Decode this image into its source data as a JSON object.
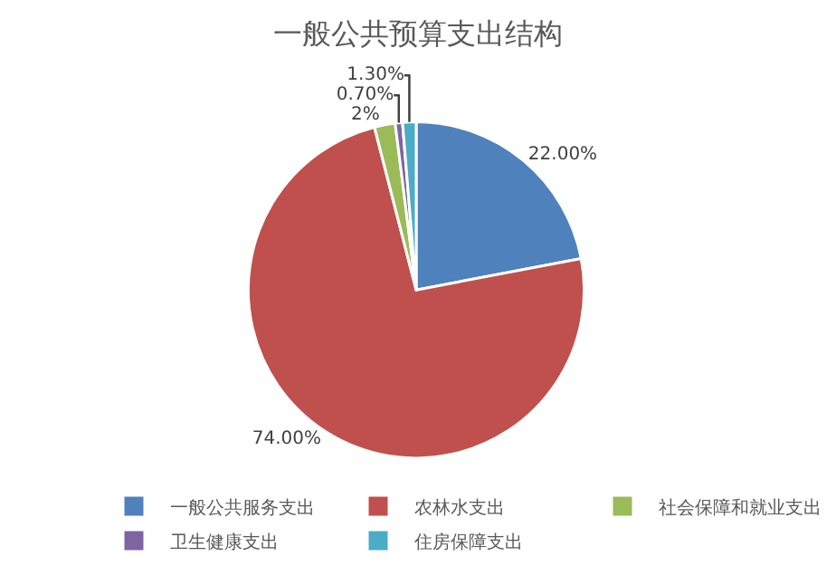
{
  "chart_data": {
    "type": "pie",
    "title": "一般公共预算支出结构",
    "categories": [
      "一般公共服务支出",
      "农林水支出",
      "社会保障和就业支出",
      "卫生健康支出",
      "住房保障支出"
    ],
    "values": [
      22,
      74,
      2,
      0.7,
      1.3
    ],
    "colors": [
      "#4f81bd",
      "#c0504d",
      "#9bbb59",
      "#8064a2",
      "#4bacc6"
    ],
    "value_labels": [
      "22.00%",
      "74.00%",
      "2%",
      "0.70%",
      "1.30%"
    ],
    "legend": "bottom"
  }
}
